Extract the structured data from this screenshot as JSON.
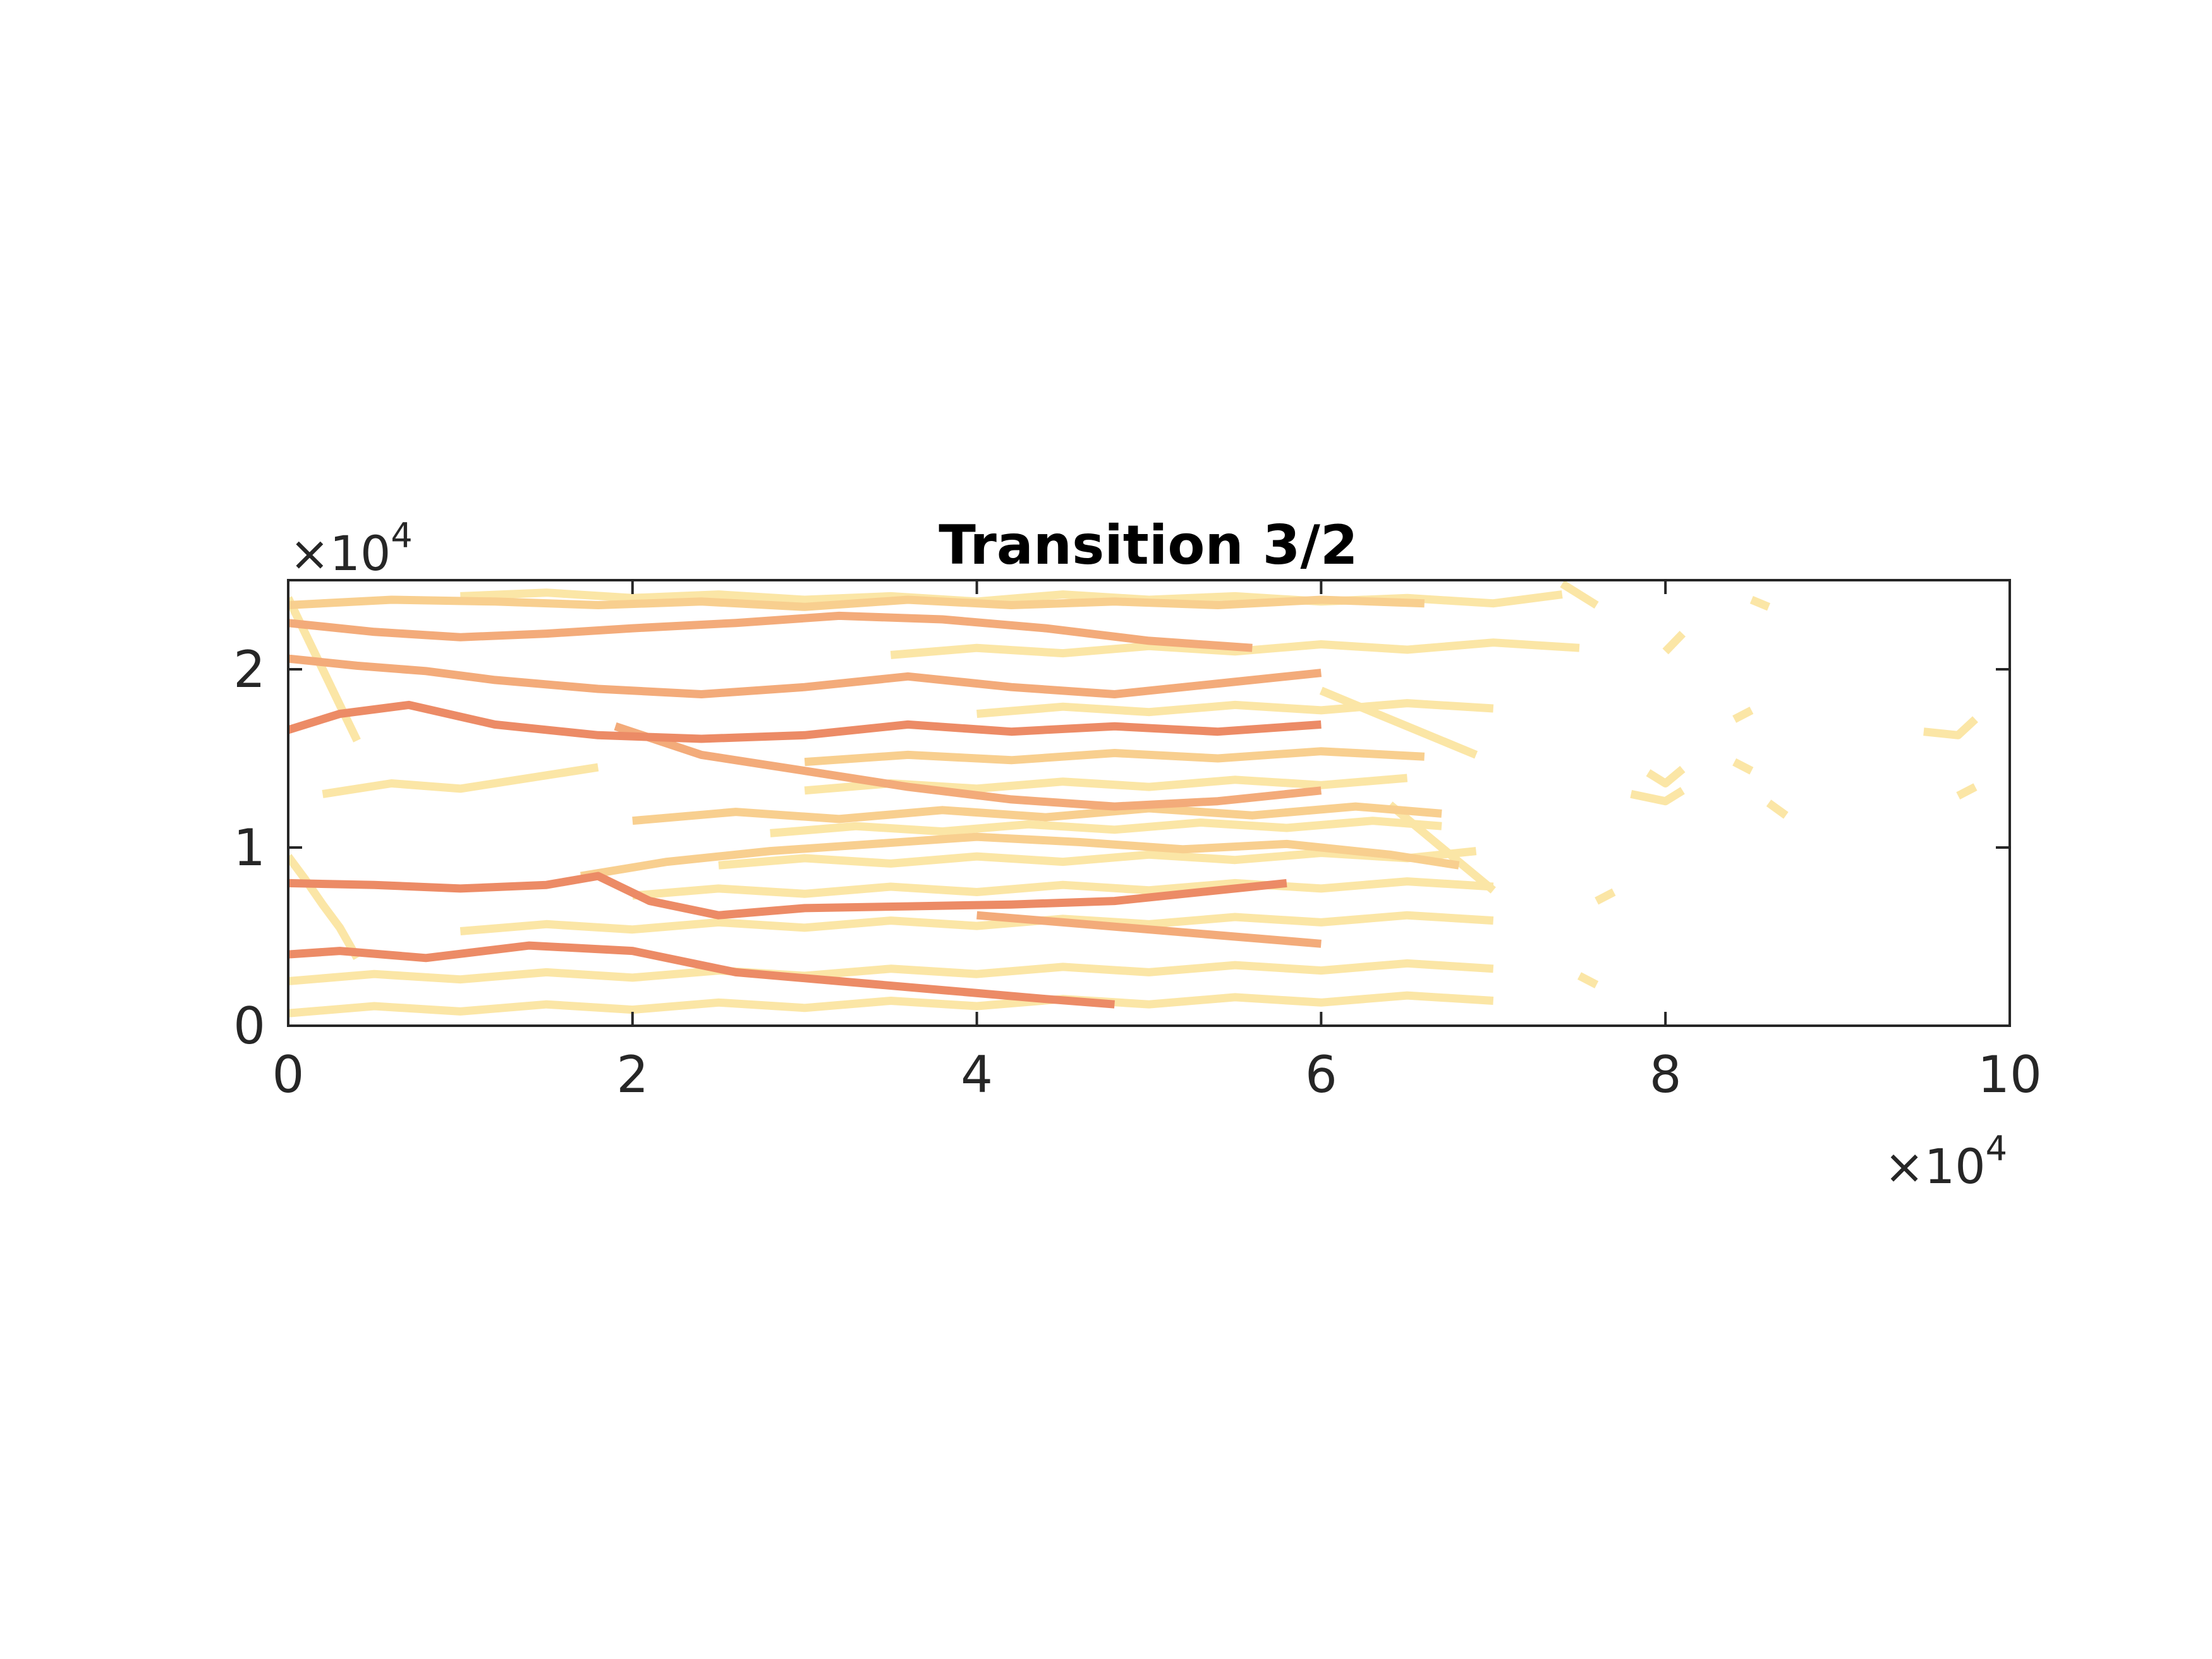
{
  "chart_data": {
    "type": "line",
    "title": "Transition 3/2",
    "xlabel": "",
    "ylabel": "",
    "xlim": [
      0,
      100000
    ],
    "ylim": [
      0,
      25000
    ],
    "x_ticks": [
      0,
      20000,
      40000,
      60000,
      80000,
      100000
    ],
    "x_tick_labels": [
      "0",
      "2",
      "4",
      "6",
      "8",
      "10"
    ],
    "y_ticks": [
      0,
      10000,
      20000
    ],
    "y_tick_labels": [
      "0",
      "1",
      "2"
    ],
    "x_exponent": {
      "base": "×10",
      "power": "4"
    },
    "y_exponent": {
      "base": "×10",
      "power": "4"
    },
    "grid": false,
    "legend": "none",
    "colors": {
      "faint": "#fbe6a6",
      "light": "#f8cf8f",
      "medium": "#f3ab7a",
      "dark": "#ec8b66",
      "axis": "#262626"
    },
    "series": [
      {
        "intensity": "dark",
        "x": [
          0,
          3000,
          8000,
          14000,
          20000,
          26000,
          32000,
          38000,
          44000,
          48000
        ],
        "y": [
          4000,
          4200,
          3800,
          4500,
          4200,
          3000,
          2500,
          2000,
          1500,
          1200
        ]
      },
      {
        "intensity": "dark",
        "x": [
          0,
          5000,
          10000,
          15000,
          18000,
          21000,
          25000,
          30000,
          36000,
          42000,
          48000,
          54000,
          58000
        ],
        "y": [
          8000,
          7900,
          7700,
          7900,
          8400,
          7000,
          6200,
          6600,
          6700,
          6800,
          7000,
          7600,
          8000
        ]
      },
      {
        "intensity": "dark",
        "x": [
          0,
          3000,
          7000,
          12000,
          18000,
          24000,
          30000,
          36000,
          42000,
          48000,
          54000,
          60000
        ],
        "y": [
          16600,
          17500,
          18000,
          16900,
          16300,
          16100,
          16300,
          16900,
          16500,
          16800,
          16500,
          16900
        ]
      },
      {
        "intensity": "medium",
        "x": [
          0,
          4000,
          8000,
          12000,
          18000,
          24000,
          30000,
          36000,
          42000,
          48000,
          54000,
          60000
        ],
        "y": [
          20600,
          20200,
          19900,
          19400,
          18900,
          18600,
          19000,
          19600,
          19000,
          18600,
          19200,
          19800
        ]
      },
      {
        "intensity": "medium",
        "x": [
          0,
          5000,
          10000,
          15000,
          20000,
          26000,
          32000,
          38000,
          44000,
          50000,
          56000
        ],
        "y": [
          22600,
          22100,
          21800,
          22000,
          22300,
          22600,
          23000,
          22800,
          22300,
          21600,
          21200
        ]
      },
      {
        "intensity": "medium",
        "x": [
          19000,
          24000,
          30000,
          36000,
          42000,
          48000,
          54000,
          60000
        ],
        "y": [
          16800,
          15200,
          14300,
          13400,
          12700,
          12300,
          12600,
          13200
        ]
      },
      {
        "intensity": "medium",
        "x": [
          40000,
          45000,
          50000,
          55000,
          60000
        ],
        "y": [
          6200,
          5800,
          5400,
          5000,
          4600
        ]
      },
      {
        "intensity": "light",
        "x": [
          0,
          6000,
          12000,
          18000,
          24000,
          30000,
          36000,
          42000,
          48000,
          54000,
          60000,
          66000
        ],
        "y": [
          23600,
          23900,
          23800,
          23600,
          23800,
          23500,
          23900,
          23600,
          23800,
          23600,
          23900,
          23700
        ]
      },
      {
        "intensity": "light",
        "x": [
          17000,
          22000,
          28000,
          34000,
          40000,
          46000,
          52000,
          58000,
          64000,
          68000
        ],
        "y": [
          8400,
          9200,
          9800,
          10200,
          10600,
          10300,
          9900,
          10200,
          9600,
          9000
        ]
      },
      {
        "intensity": "light",
        "x": [
          20000,
          26000,
          32000,
          38000,
          44000,
          50000,
          56000,
          62000,
          67000
        ],
        "y": [
          11500,
          12000,
          11600,
          12100,
          11700,
          12200,
          11800,
          12300,
          11900
        ]
      },
      {
        "intensity": "light",
        "x": [
          30000,
          36000,
          42000,
          48000,
          54000,
          60000,
          66000
        ],
        "y": [
          14800,
          15200,
          14900,
          15300,
          15000,
          15400,
          15100
        ]
      },
      {
        "intensity": "faint",
        "x": [
          2000,
          6000,
          10000,
          14000,
          18000
        ],
        "y": [
          13000,
          13600,
          13300,
          13900,
          14500
        ]
      },
      {
        "intensity": "faint",
        "x": [
          0,
          5000,
          10000,
          15000,
          20000,
          25000,
          30000,
          35000,
          40000,
          45000,
          50000,
          55000,
          60000,
          65000,
          70000
        ],
        "y": [
          700,
          1100,
          800,
          1200,
          900,
          1300,
          1000,
          1400,
          1100,
          1500,
          1200,
          1600,
          1300,
          1700,
          1400
        ]
      },
      {
        "intensity": "faint",
        "x": [
          0,
          5000,
          10000,
          15000,
          20000,
          25000,
          30000,
          35000,
          40000,
          45000,
          50000,
          55000,
          60000,
          65000,
          70000
        ],
        "y": [
          2500,
          2900,
          2600,
          3000,
          2700,
          3100,
          2800,
          3200,
          2900,
          3300,
          3000,
          3400,
          3100,
          3500,
          3200
        ]
      },
      {
        "intensity": "faint",
        "x": [
          10000,
          15000,
          20000,
          25000,
          30000,
          35000,
          40000,
          45000,
          50000,
          55000,
          60000,
          65000,
          70000
        ],
        "y": [
          5300,
          5700,
          5400,
          5800,
          5500,
          5900,
          5600,
          6000,
          5700,
          6100,
          5800,
          6200,
          5900
        ]
      },
      {
        "intensity": "faint",
        "x": [
          20000,
          25000,
          30000,
          35000,
          40000,
          45000,
          50000,
          55000,
          60000,
          65000,
          70000
        ],
        "y": [
          7300,
          7700,
          7400,
          7800,
          7500,
          7900,
          7600,
          8000,
          7700,
          8100,
          7800
        ]
      },
      {
        "intensity": "faint",
        "x": [
          25000,
          30000,
          35000,
          40000,
          45000,
          50000,
          55000,
          60000,
          65000,
          69000
        ],
        "y": [
          9000,
          9400,
          9100,
          9500,
          9200,
          9600,
          9300,
          9700,
          9400,
          9800
        ]
      },
      {
        "intensity": "faint",
        "x": [
          28000,
          33000,
          38000,
          43000,
          48000,
          53000,
          58000,
          63000,
          67000
        ],
        "y": [
          10800,
          11200,
          10900,
          11300,
          11000,
          11400,
          11100,
          11500,
          11200
        ]
      },
      {
        "intensity": "faint",
        "x": [
          30000,
          35000,
          40000,
          45000,
          50000,
          55000,
          60000,
          65000
        ],
        "y": [
          13200,
          13600,
          13300,
          13700,
          13400,
          13800,
          13500,
          13900
        ]
      },
      {
        "intensity": "faint",
        "x": [
          40000,
          45000,
          50000,
          55000,
          60000,
          65000,
          70000
        ],
        "y": [
          17500,
          17900,
          17600,
          18000,
          17700,
          18100,
          17800
        ]
      },
      {
        "intensity": "faint",
        "x": [
          35000,
          40000,
          45000,
          50000,
          55000,
          60000,
          65000,
          70000,
          75000
        ],
        "y": [
          20800,
          21200,
          20900,
          21300,
          21000,
          21400,
          21100,
          21500,
          21200
        ]
      },
      {
        "intensity": "faint",
        "x": [
          10000,
          15000,
          20000,
          25000,
          30000,
          35000,
          40000,
          45000,
          50000,
          55000,
          60000,
          65000,
          70000,
          74000
        ],
        "y": [
          24100,
          24300,
          24000,
          24200,
          23900,
          24100,
          23800,
          24200,
          23900,
          24100,
          23800,
          24000,
          23700,
          24200
        ]
      },
      {
        "intensity": "faint",
        "x": [
          0,
          1000,
          2000,
          3000,
          4000
        ],
        "y": [
          9500,
          8200,
          6800,
          5500,
          3800
        ]
      },
      {
        "intensity": "faint",
        "x": [
          0,
          1000,
          2000,
          3000,
          4000
        ],
        "y": [
          24000,
          22000,
          20000,
          18000,
          16000
        ]
      },
      {
        "intensity": "faint",
        "x": [
          60000,
          63000,
          66000,
          69000
        ],
        "y": [
          18800,
          17600,
          16400,
          15200
        ]
      },
      {
        "intensity": "faint",
        "x": [
          64000,
          66000,
          68000,
          70000
        ],
        "y": [
          12400,
          10800,
          9200,
          7600
        ]
      },
      {
        "intensity": "faint",
        "x": [
          80000,
          81000
        ],
        "y": [
          21000,
          22000
        ]
      },
      {
        "intensity": "faint",
        "x": [
          85000,
          86000
        ],
        "y": [
          23900,
          23500
        ]
      },
      {
        "intensity": "faint",
        "x": [
          79000,
          80000,
          81000
        ],
        "y": [
          14200,
          13600,
          14400
        ]
      },
      {
        "intensity": "faint",
        "x": [
          78000,
          80000,
          81000
        ],
        "y": [
          13000,
          12600,
          13200
        ]
      },
      {
        "intensity": "faint",
        "x": [
          84000,
          85000
        ],
        "y": [
          17200,
          17700
        ]
      },
      {
        "intensity": "faint",
        "x": [
          84000,
          85000
        ],
        "y": [
          14800,
          14300
        ]
      },
      {
        "intensity": "faint",
        "x": [
          86000,
          87000
        ],
        "y": [
          12500,
          11800
        ]
      },
      {
        "intensity": "faint",
        "x": [
          76000,
          77000
        ],
        "y": [
          7000,
          7500
        ]
      },
      {
        "intensity": "faint",
        "x": [
          75000,
          76000
        ],
        "y": [
          2800,
          2300
        ]
      },
      {
        "intensity": "faint",
        "x": [
          95000,
          97000,
          98000
        ],
        "y": [
          16500,
          16300,
          17200
        ]
      },
      {
        "intensity": "faint",
        "x": [
          97000,
          98000
        ],
        "y": [
          12900,
          13400
        ]
      },
      {
        "intensity": "faint",
        "x": [
          74000,
          76000
        ],
        "y": [
          24800,
          23600
        ]
      }
    ]
  }
}
